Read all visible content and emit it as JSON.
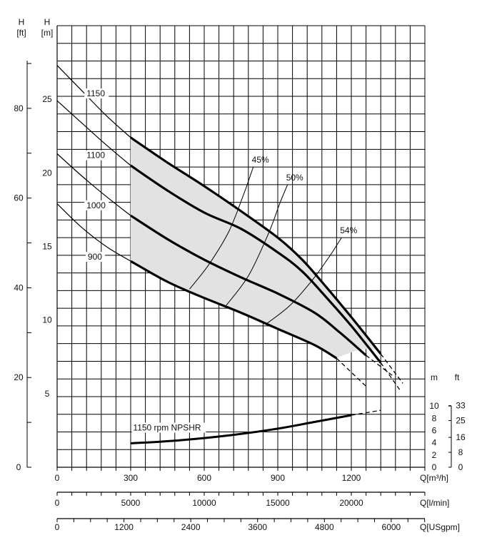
{
  "chart_data": {
    "type": "line",
    "axes": {
      "left_ft": {
        "unit_top": "H",
        "unit_bottom": "[ft]",
        "ticks": [
          "0",
          "20",
          "40",
          "60",
          "80"
        ],
        "values": [
          0,
          20,
          40,
          60,
          80
        ]
      },
      "left_m": {
        "unit_top": "H",
        "unit_bottom": "[m]",
        "ticks": [
          "5",
          "10",
          "15",
          "20",
          "25"
        ],
        "values": [
          5,
          10,
          15,
          20,
          25
        ]
      },
      "npshr_m": {
        "unit": "m",
        "ticks": [
          "0",
          "2",
          "4",
          "6",
          "8",
          "10"
        ],
        "values": [
          0,
          2,
          4,
          6,
          8,
          10
        ]
      },
      "npshr_ft": {
        "unit": "ft",
        "ticks": [
          "0",
          "8",
          "16",
          "25",
          "33"
        ],
        "values": [
          0,
          8,
          16,
          25,
          33
        ]
      },
      "x_m3h": {
        "label": "Q[m³/h]",
        "ticks": [
          "0",
          "300",
          "600",
          "900",
          "1200"
        ],
        "values": [
          0,
          300,
          600,
          900,
          1200
        ]
      },
      "x_lmin": {
        "label": "Q[l/min]",
        "ticks": [
          "0",
          "5000",
          "10000",
          "15000",
          "20000"
        ],
        "values": [
          0,
          5000,
          10000,
          15000,
          20000
        ]
      },
      "x_usgpm": {
        "label": "Q[USgpm]",
        "ticks": [
          "0",
          "1200",
          "2400",
          "3600",
          "4800",
          "6000"
        ],
        "values": [
          0,
          1200,
          2400,
          3600,
          4800,
          6000
        ]
      },
      "xlim_m3h": [
        0,
        1500
      ],
      "ylim_m": [
        0,
        30
      ],
      "npshr_ylim_m": [
        0,
        12
      ]
    },
    "series": [
      {
        "name": "1150",
        "thin": [
          [
            0,
            27.3
          ],
          [
            100,
            25.6
          ],
          [
            200,
            23.9
          ],
          [
            300,
            22.4
          ]
        ],
        "bold": [
          [
            300,
            22.4
          ],
          [
            450,
            20.7
          ],
          [
            600,
            19.1
          ],
          [
            750,
            17.4
          ],
          [
            900,
            15.6
          ],
          [
            1000,
            14.1
          ],
          [
            1100,
            12.2
          ],
          [
            1200,
            10.2
          ],
          [
            1320,
            7.7
          ]
        ],
        "dashed": [
          [
            1320,
            7.7
          ],
          [
            1410,
            5.7
          ]
        ]
      },
      {
        "name": "1100",
        "thin": [
          [
            0,
            24.9
          ],
          [
            100,
            23.4
          ],
          [
            200,
            21.9
          ],
          [
            300,
            20.5
          ]
        ],
        "bold": [
          [
            300,
            20.5
          ],
          [
            450,
            18.8
          ],
          [
            600,
            17.3
          ],
          [
            750,
            16.2
          ],
          [
            900,
            14.6
          ],
          [
            1000,
            13.3
          ],
          [
            1100,
            11.5
          ],
          [
            1200,
            9.6
          ],
          [
            1320,
            7.1
          ]
        ],
        "dashed": [
          [
            1320,
            7.1
          ],
          [
            1400,
            5.2
          ]
        ]
      },
      {
        "name": "1000",
        "thin": [
          [
            0,
            21.3
          ],
          [
            100,
            19.8
          ],
          [
            200,
            18.4
          ],
          [
            300,
            17.1
          ]
        ],
        "bold": [
          [
            300,
            17.1
          ],
          [
            450,
            15.5
          ],
          [
            600,
            14.1
          ],
          [
            750,
            12.9
          ],
          [
            900,
            11.8
          ],
          [
            1050,
            10.5
          ],
          [
            1150,
            9.2
          ],
          [
            1260,
            7.6
          ]
        ],
        "dashed": [
          [
            1260,
            7.6
          ],
          [
            1370,
            6.2
          ]
        ]
      },
      {
        "name": "900",
        "thin": [
          [
            0,
            17.9
          ],
          [
            100,
            16.3
          ],
          [
            200,
            15.0
          ],
          [
            300,
            14.0
          ]
        ],
        "bold": [
          [
            300,
            14.0
          ],
          [
            450,
            12.6
          ],
          [
            600,
            11.5
          ],
          [
            750,
            10.5
          ],
          [
            900,
            9.4
          ],
          [
            1050,
            8.3
          ],
          [
            1140,
            7.4
          ]
        ],
        "dashed": [
          [
            1140,
            7.4
          ],
          [
            1260,
            5.5
          ]
        ]
      }
    ],
    "efficiency_lines": [
      {
        "label": "45%",
        "points": [
          [
            540,
            12.1
          ],
          [
            620,
            13.8
          ],
          [
            700,
            16.0
          ],
          [
            760,
            18.5
          ],
          [
            800,
            20.4
          ]
        ]
      },
      {
        "label": "50%",
        "points": [
          [
            690,
            11.0
          ],
          [
            780,
            13.0
          ],
          [
            860,
            15.8
          ],
          [
            910,
            18.0
          ],
          [
            940,
            19.2
          ]
        ]
      },
      {
        "label": "54%",
        "points": [
          [
            850,
            9.7
          ],
          [
            950,
            11.0
          ],
          [
            1040,
            12.7
          ],
          [
            1110,
            14.3
          ],
          [
            1160,
            15.6
          ]
        ]
      }
    ],
    "npshr": {
      "label": "1150 rpm NPSHR",
      "solid": [
        [
          300,
          3.9
        ],
        [
          500,
          4.4
        ],
        [
          700,
          5.2
        ],
        [
          900,
          6.3
        ],
        [
          1050,
          7.4
        ],
        [
          1200,
          8.5
        ]
      ],
      "dashed": [
        [
          1200,
          8.5
        ],
        [
          1320,
          9.3
        ]
      ]
    },
    "grid": true
  }
}
